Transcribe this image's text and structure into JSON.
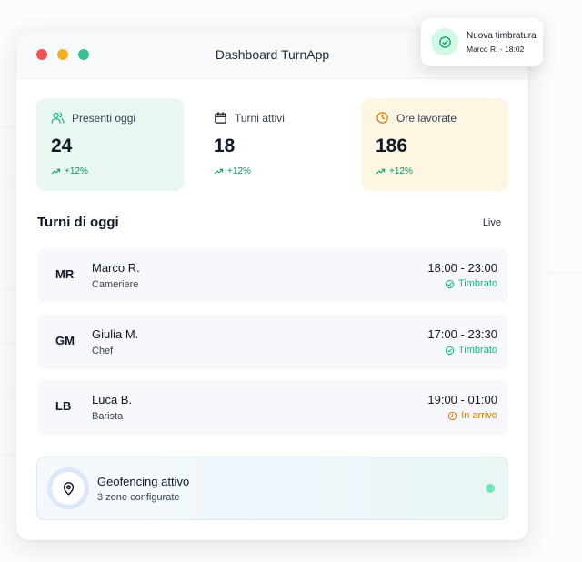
{
  "window": {
    "title": "Dashboard TurnApp"
  },
  "colors": {
    "accent_green": "#10b981",
    "accent_amber": "#d97706",
    "card_green": "#e8f8f1",
    "card_amber": "#fdf6e3"
  },
  "stats": [
    {
      "label": "Presenti oggi",
      "value": "24",
      "trend": "+12%",
      "icon": "users-icon"
    },
    {
      "label": "Turni attivi",
      "value": "18",
      "trend": "+12%",
      "icon": "calendar-icon"
    },
    {
      "label": "Ore lavorate",
      "value": "186",
      "trend": "+12%",
      "icon": "clock-icon"
    }
  ],
  "shifts_section": {
    "title": "Turni di oggi",
    "live_label": "Live"
  },
  "shifts": [
    {
      "initials": "MR",
      "name": "Marco R.",
      "role": "Cameriere",
      "time": "18:00 - 23:00",
      "status": "Timbrato"
    },
    {
      "initials": "GM",
      "name": "Giulia M.",
      "role": "Chef",
      "time": "17:00 - 23:30",
      "status": "Timbrato"
    },
    {
      "initials": "LB",
      "name": "Luca B.",
      "role": "Barista",
      "time": "19:00 - 01:00",
      "status": "In arrivo"
    }
  ],
  "geofencing": {
    "title": "Geofencing attivo",
    "subtitle": "3 zone configurate",
    "icon": "map-pin-icon"
  },
  "toast": {
    "title": "Nuova timbratura",
    "subtitle": "Marco R. - 18:02",
    "icon": "check-circle-icon"
  }
}
